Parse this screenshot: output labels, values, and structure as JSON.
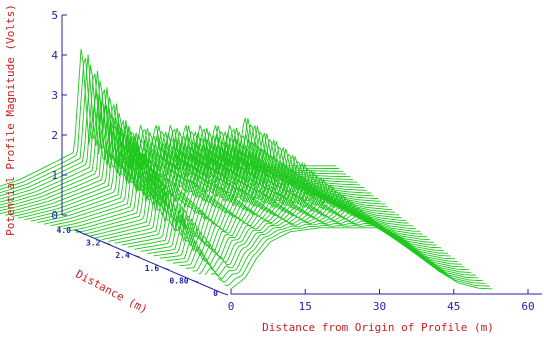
{
  "chart_data": {
    "type": "line",
    "subtype": "3d-waterfall",
    "zlabel": "Potential Profile Magnitude (Volts)",
    "ylabel": "Distance (m)",
    "xlabel": "Distance from Origin of Profile (m)",
    "z_ticks": [
      "0",
      "1",
      "2",
      "3",
      "4",
      "5"
    ],
    "y_ticks": [
      "0",
      "0.80",
      "1.6",
      "2.4",
      "3.2",
      "4.0"
    ],
    "x_ticks": [
      "0",
      "15",
      "30",
      "45",
      "60"
    ],
    "z_range": [
      0,
      5
    ],
    "y_range": [
      0,
      4.0
    ],
    "x_range": [
      0,
      60
    ],
    "trace_count": 46,
    "profile_front": {
      "x": [
        0,
        3,
        5,
        8,
        12,
        18,
        24,
        30,
        33,
        36,
        38,
        42,
        46,
        50,
        53
      ],
      "z": [
        0,
        0.3,
        0.75,
        1.2,
        1.45,
        1.55,
        1.55,
        1.55,
        1.4,
        1.15,
        0.9,
        0.45,
        0.15,
        0.02,
        0
      ]
    },
    "profile_back": {
      "x": [
        -30,
        -20,
        -14,
        -10,
        -6,
        -3,
        -1.5,
        0
      ],
      "z": [
        0.7,
        1.05,
        1.3,
        1.55,
        1.8,
        2.0,
        2.1,
        2.2
      ]
    },
    "peaks": {
      "x": [
        -1.5,
        1.5,
        4.5,
        7.5,
        10.5,
        13.5,
        16.5,
        19.5,
        22.5,
        25.5,
        28.5,
        31.5
      ],
      "z": [
        2.7,
        1.4,
        1.2,
        1.1,
        1.1,
        1.1,
        1.1,
        1.1,
        1.1,
        1.1,
        1.1,
        1.3
      ]
    },
    "line_color": "#1ec81e",
    "tick_color": "#2323a8",
    "label_color": "#c81e1e"
  }
}
